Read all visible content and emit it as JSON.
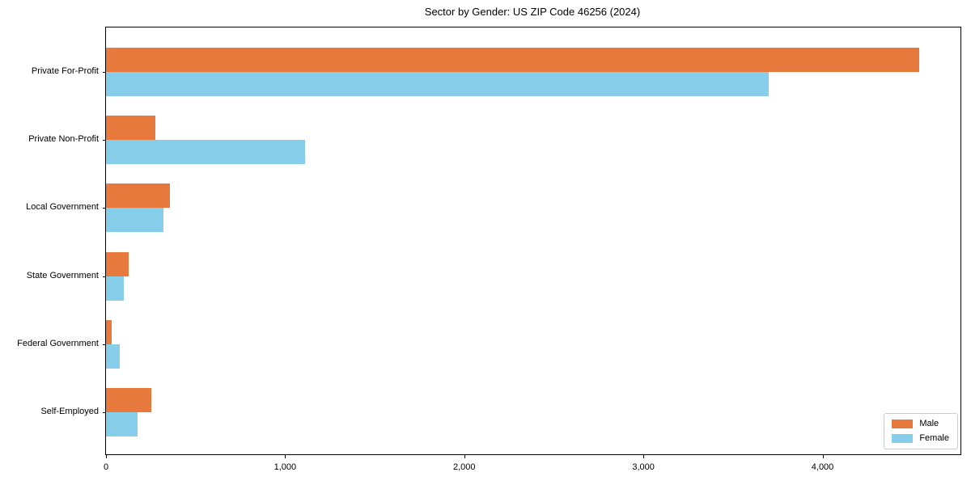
{
  "chart_data": {
    "type": "bar",
    "orientation": "horizontal",
    "title": "Sector by Gender: US ZIP Code 46256 (2024)",
    "categories": [
      "Private For-Profit",
      "Private Non-Profit",
      "Local Government",
      "State Government",
      "Federal Government",
      "Self-Employed"
    ],
    "series": [
      {
        "name": "Male",
        "color": "#E8793C",
        "values": [
          4540,
          275,
          355,
          125,
          30,
          255
        ]
      },
      {
        "name": "Female",
        "color": "#87CEEB",
        "values": [
          3700,
          1110,
          320,
          100,
          75,
          175
        ]
      }
    ],
    "xlabel": "",
    "ylabel": "",
    "xlim": [
      0,
      4770
    ],
    "x_ticks": [
      0,
      1000,
      2000,
      3000,
      4000
    ],
    "x_tick_labels": [
      "0",
      "1,000",
      "2,000",
      "3,000",
      "4,000"
    ],
    "grid": false,
    "legend_position": "lower right"
  },
  "colors": {
    "male": "#E8793C",
    "female": "#87CEEB",
    "spine": "#000000",
    "background": "#ffffff",
    "legend_border": "#cccccc"
  }
}
